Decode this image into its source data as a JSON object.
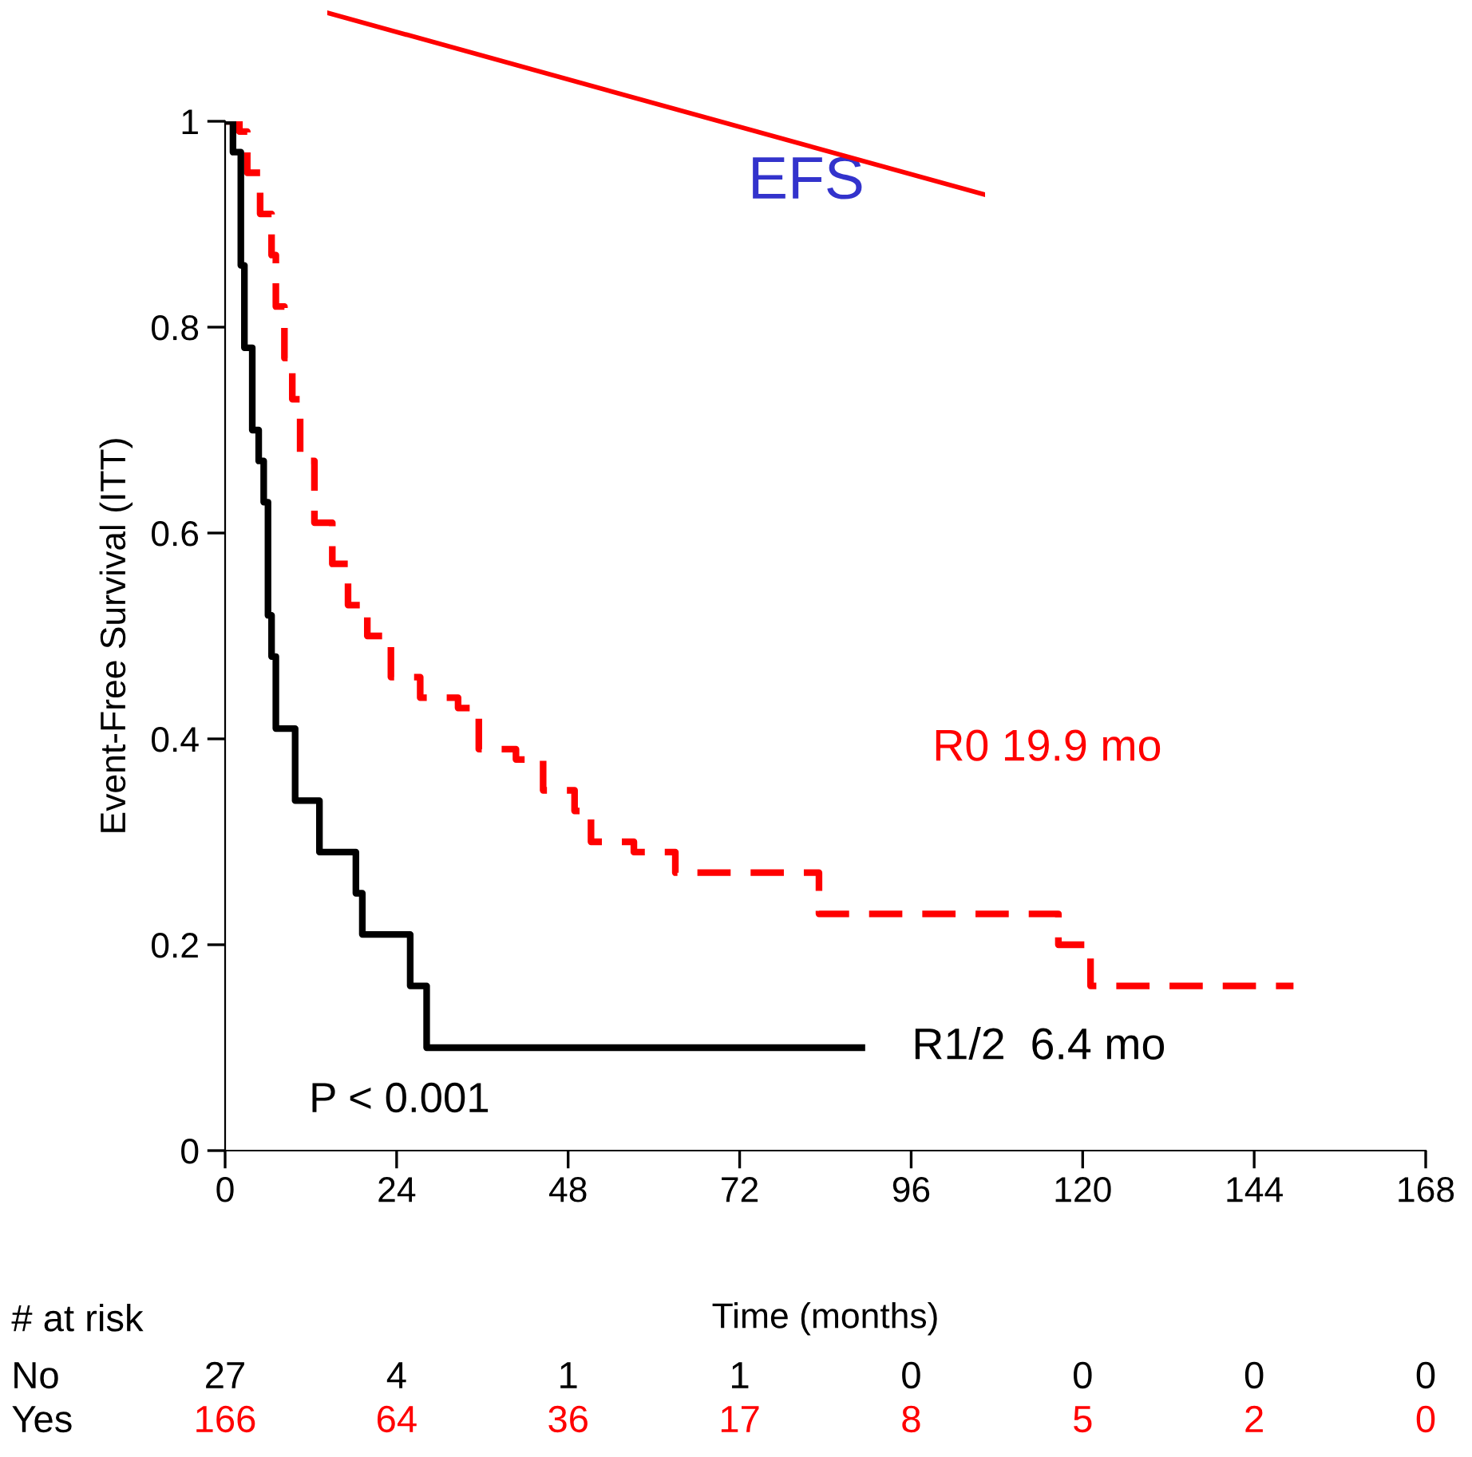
{
  "chart_data": [
    {
      "type": "step",
      "title": "EFS",
      "xlabel": "Time (months)",
      "ylabel": "Event-Free Survival (ITT)",
      "xlim": [
        0,
        168
      ],
      "xticks": [
        0,
        24,
        48,
        72,
        96,
        120,
        144,
        168
      ],
      "ylim": [
        0,
        1
      ],
      "yticks": [
        0,
        0.2,
        0.4,
        0.6,
        0.8,
        1
      ],
      "grid": false,
      "legend": false,
      "marker": "none",
      "series": [
        {
          "name": "R0 19.9 mo",
          "color": "#ff0000",
          "line_style": "dashed",
          "x": [
            0,
            2.0,
            3.1,
            4.9,
            6.5,
            7.1,
            8.3,
            9.4,
            10.5,
            12.5,
            15.0,
            17.2,
            19.9,
            23.2,
            27.3,
            32.6,
            35.5,
            40.7,
            44.5,
            48.9,
            51.2,
            57.2,
            63.0,
            83.1,
            116.6,
            121.1,
            149.5
          ],
          "values": [
            1,
            0.99,
            0.95,
            0.91,
            0.87,
            0.82,
            0.77,
            0.73,
            0.67,
            0.61,
            0.57,
            0.53,
            0.5,
            0.46,
            0.44,
            0.43,
            0.39,
            0.38,
            0.35,
            0.33,
            0.3,
            0.29,
            0.27,
            0.23,
            0.2,
            0.16,
            0.16
          ]
        },
        {
          "name": "R1/2  6.4 mo",
          "color": "#000000",
          "line_style": "solid",
          "x": [
            0,
            1.1,
            2.2,
            2.7,
            3.8,
            4.7,
            5.4,
            6.0,
            6.5,
            7.1,
            9.8,
            13.2,
            18.3,
            19.2,
            25.9,
            28.2,
            89.1
          ],
          "values": [
            1,
            0.97,
            0.86,
            0.78,
            0.7,
            0.67,
            0.63,
            0.52,
            0.48,
            0.41,
            0.34,
            0.29,
            0.25,
            0.21,
            0.16,
            0.1,
            0.1
          ]
        }
      ],
      "annotations": [
        "P < 0.001"
      ]
    },
    {
      "type": "other",
      "title": "# at risk",
      "y_categories": [
        "No",
        "Yes"
      ],
      "colors": [
        "#000000",
        "#ff0000"
      ],
      "cell_labels": [
        [
          "27",
          "4",
          "1",
          "1",
          "0",
          "0",
          "0",
          "0"
        ],
        [
          "166",
          "64",
          "36",
          "17",
          "8",
          "5",
          "2",
          "0"
        ]
      ]
    }
  ]
}
